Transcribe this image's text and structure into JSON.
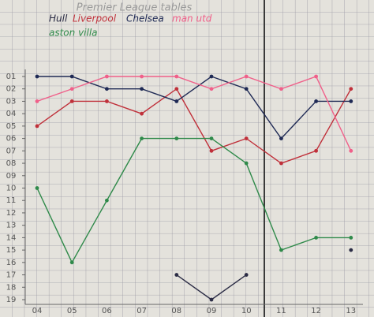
{
  "chart_data": {
    "type": "line",
    "title": "Premier League tables",
    "categories": [
      "04",
      "05",
      "06",
      "07",
      "08",
      "09",
      "10",
      "11",
      "12",
      "13"
    ],
    "series": [
      {
        "name": "Hull",
        "color": "#2b2c45",
        "values": [
          null,
          null,
          null,
          null,
          17,
          19,
          17,
          null,
          null,
          15
        ]
      },
      {
        "name": "Liverpool",
        "color": "#c0303a",
        "values": [
          5,
          3,
          3,
          4,
          2,
          7,
          6,
          8,
          7,
          2
        ]
      },
      {
        "name": "Chelsea",
        "color": "#1f2a55",
        "values": [
          1,
          1,
          2,
          2,
          3,
          1,
          2,
          6,
          3,
          3
        ]
      },
      {
        "name": "man utd",
        "color": "#f0608a",
        "values": [
          3,
          2,
          1,
          1,
          1,
          2,
          1,
          2,
          1,
          7
        ]
      },
      {
        "name": "aston villa",
        "color": "#2f8a4a",
        "values": [
          10,
          16,
          11,
          6,
          6,
          6,
          8,
          15,
          14,
          14
        ]
      }
    ],
    "ylim": [
      1,
      19
    ],
    "y_inverted": true,
    "yticks": [
      {
        "value": 1,
        "label": "01"
      },
      {
        "value": 2,
        "label": "02"
      },
      {
        "value": 3,
        "label": "03"
      },
      {
        "value": 4,
        "label": "04"
      },
      {
        "value": 5,
        "label": "05"
      },
      {
        "value": 6,
        "label": "06"
      },
      {
        "value": 7,
        "label": "07"
      },
      {
        "value": 8,
        "label": "08"
      },
      {
        "value": 9,
        "label": "09"
      },
      10,
      11,
      12,
      13,
      14,
      15,
      16,
      17,
      18,
      19
    ]
  }
}
